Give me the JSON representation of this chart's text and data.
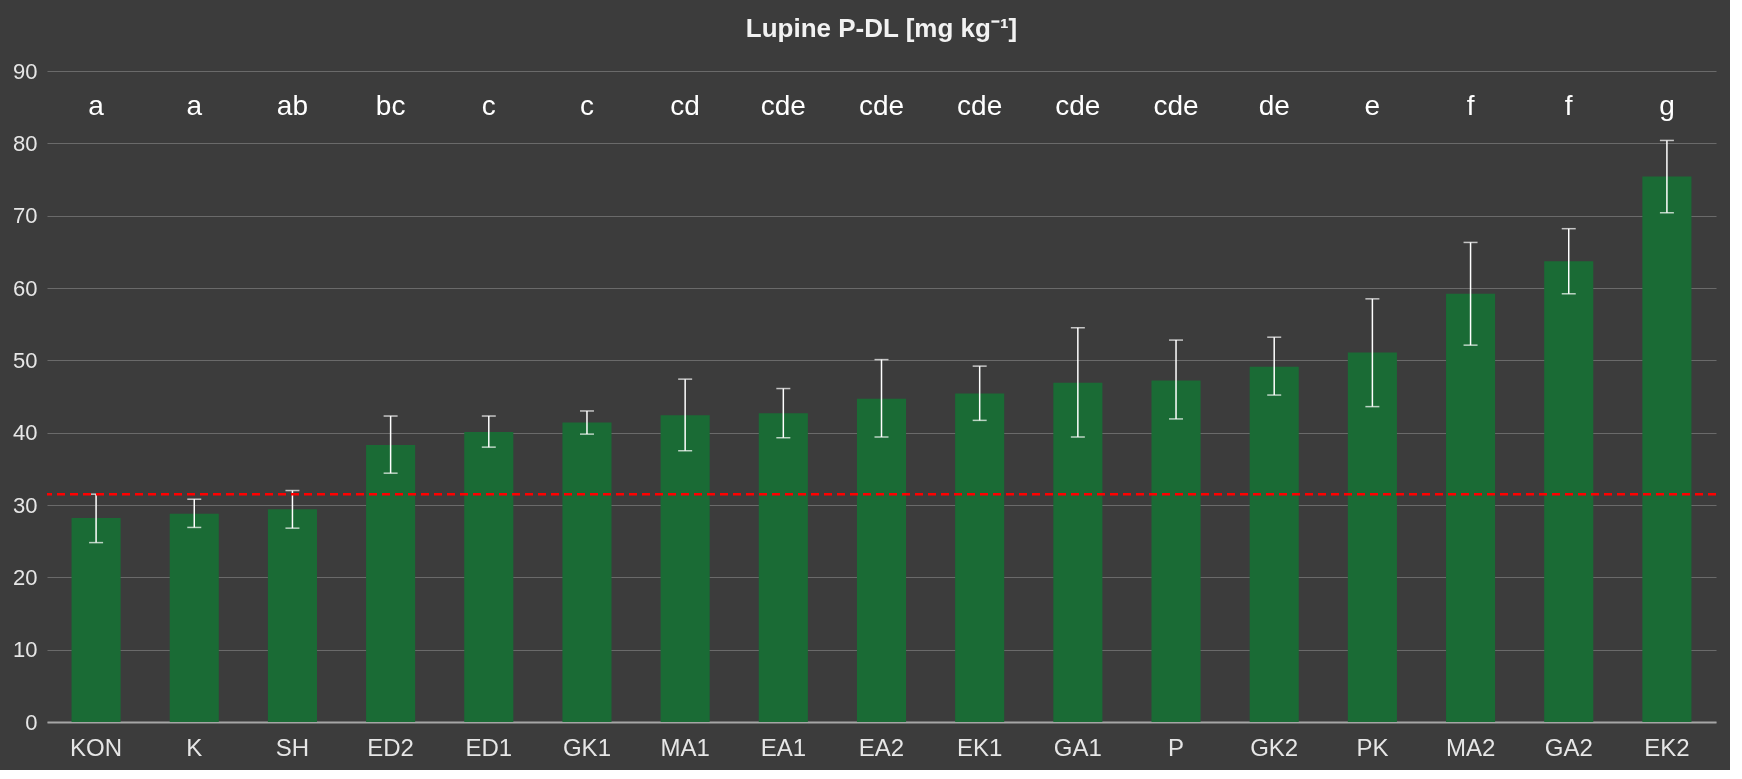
{
  "chart_data": {
    "type": "bar",
    "title": "Lupine P-DL [mg kg⁻¹]",
    "categories": [
      "KON",
      "K",
      "SH",
      "ED2",
      "ED1",
      "GK1",
      "MA1",
      "EA1",
      "EA2",
      "EK1",
      "GA1",
      "P",
      "GK2",
      "PK",
      "MA2",
      "GA2",
      "EK2"
    ],
    "values": [
      28.2,
      28.8,
      29.4,
      38.3,
      40.1,
      41.4,
      42.4,
      42.7,
      44.7,
      45.4,
      46.9,
      47.2,
      49.1,
      51.1,
      59.2,
      63.7,
      75.4
    ],
    "errors": [
      [
        24.8,
        31.5
      ],
      [
        26.9,
        30.8
      ],
      [
        26.8,
        32.0
      ],
      [
        34.4,
        42.3
      ],
      [
        38.0,
        42.3
      ],
      [
        39.8,
        43.0
      ],
      [
        37.5,
        47.4
      ],
      [
        39.3,
        46.1
      ],
      [
        39.4,
        50.1
      ],
      [
        41.7,
        49.2
      ],
      [
        39.4,
        54.5
      ],
      [
        41.9,
        52.8
      ],
      [
        45.2,
        53.2
      ],
      [
        43.6,
        58.5
      ],
      [
        52.1,
        66.3
      ],
      [
        59.2,
        68.2
      ],
      [
        70.4,
        80.4
      ]
    ],
    "color": "#1a6b35",
    "ylim": [
      0,
      90
    ],
    "yticks": [
      0,
      10,
      20,
      30,
      40,
      50,
      60,
      70,
      80,
      90
    ],
    "grid": "y",
    "ref_lines": [
      {
        "axis": "y",
        "value": 31.5,
        "color": "#ff0000",
        "line_style": "dashed"
      }
    ],
    "annotations": [
      "a",
      "a",
      "ab",
      "bc",
      "c",
      "c",
      "cd",
      "cde",
      "cde",
      "cde",
      "cde",
      "cde",
      "de",
      "e",
      "f",
      "f",
      "g"
    ]
  }
}
